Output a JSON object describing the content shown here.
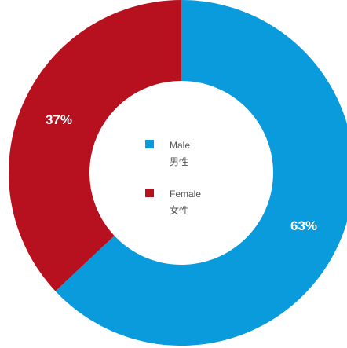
{
  "chart_data": {
    "type": "pie",
    "categories": [
      "Male",
      "Female"
    ],
    "values": [
      63,
      37
    ],
    "title": "",
    "donut": true,
    "data_labels": [
      "63%",
      "37%"
    ],
    "legend": {
      "placement": "center",
      "items": [
        {
          "label": "Male",
          "sublabel": "男性",
          "color": "#0a9bdc"
        },
        {
          "label": "Female",
          "sublabel": "女性",
          "color": "#b7111f"
        }
      ]
    },
    "colors": [
      "#0a9bdc",
      "#b7111f"
    ]
  }
}
